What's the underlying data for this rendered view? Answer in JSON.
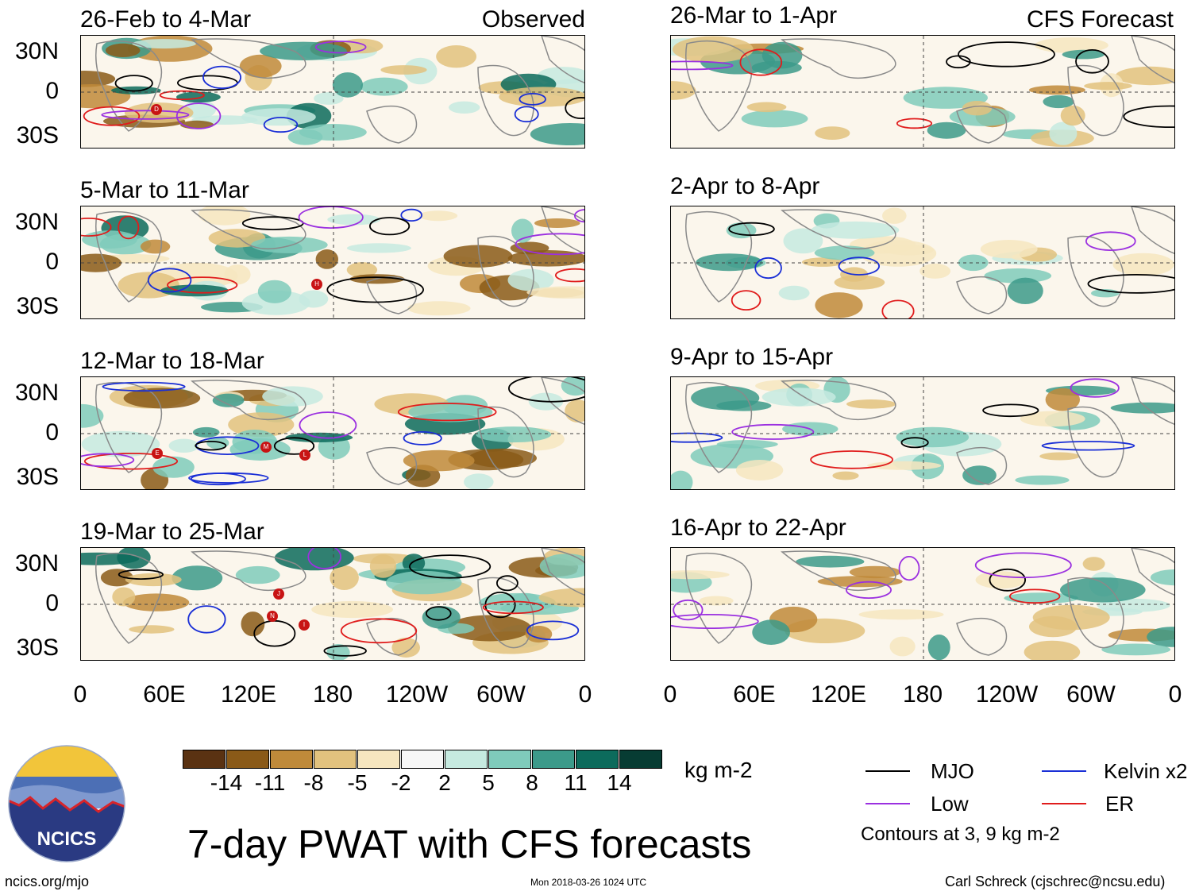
{
  "observed_label": "Observed",
  "forecast_label": "CFS Forecast",
  "panels_left": [
    {
      "title": "26-Feb to 4-Mar"
    },
    {
      "title": "5-Mar to 11-Mar"
    },
    {
      "title": "12-Mar to 18-Mar"
    },
    {
      "title": "19-Mar to 25-Mar"
    }
  ],
  "panels_right": [
    {
      "title": "26-Mar to 1-Apr"
    },
    {
      "title": "2-Apr to 8-Apr"
    },
    {
      "title": "9-Apr to 15-Apr"
    },
    {
      "title": "16-Apr to 22-Apr"
    }
  ],
  "lat_labels": [
    "30N",
    "0",
    "30S"
  ],
  "lon_labels": [
    "0",
    "60E",
    "120E",
    "180",
    "120W",
    "60W",
    "0"
  ],
  "colorbar": {
    "unit": "kg m-2",
    "labels": [
      "-14",
      "-11",
      "-8",
      "-5",
      "-2",
      "2",
      "5",
      "8",
      "11",
      "14"
    ],
    "colors": [
      "#5a3212",
      "#8a5a18",
      "#bf8a3a",
      "#e2c27e",
      "#f6e6bf",
      "#f7f7f7",
      "#c6eae0",
      "#7fcbbb",
      "#3c9a8a",
      "#0c6b5c",
      "#073c33"
    ]
  },
  "legend": {
    "mjo": "MJO",
    "kelvin": "Kelvin x2",
    "low": "Low",
    "er": "ER",
    "note": "Contours at 3, 9 kg m-2",
    "colors": {
      "mjo": "#000000",
      "kelvin": "#1a2fd6",
      "low": "#9b30e0",
      "er": "#e01c1c"
    }
  },
  "main_title": "7-day PWAT with CFS forecasts",
  "logo_text": "NCICS",
  "footer": {
    "left": "ncics.org/mjo",
    "center": "Mon 2018-03-26 1024 UTC",
    "right": "Carl Schreck (cjschrec@ncsu.edu)"
  },
  "storm_markers": [
    "D",
    "H",
    "E",
    "M",
    "L",
    "J",
    "N",
    "I"
  ]
}
